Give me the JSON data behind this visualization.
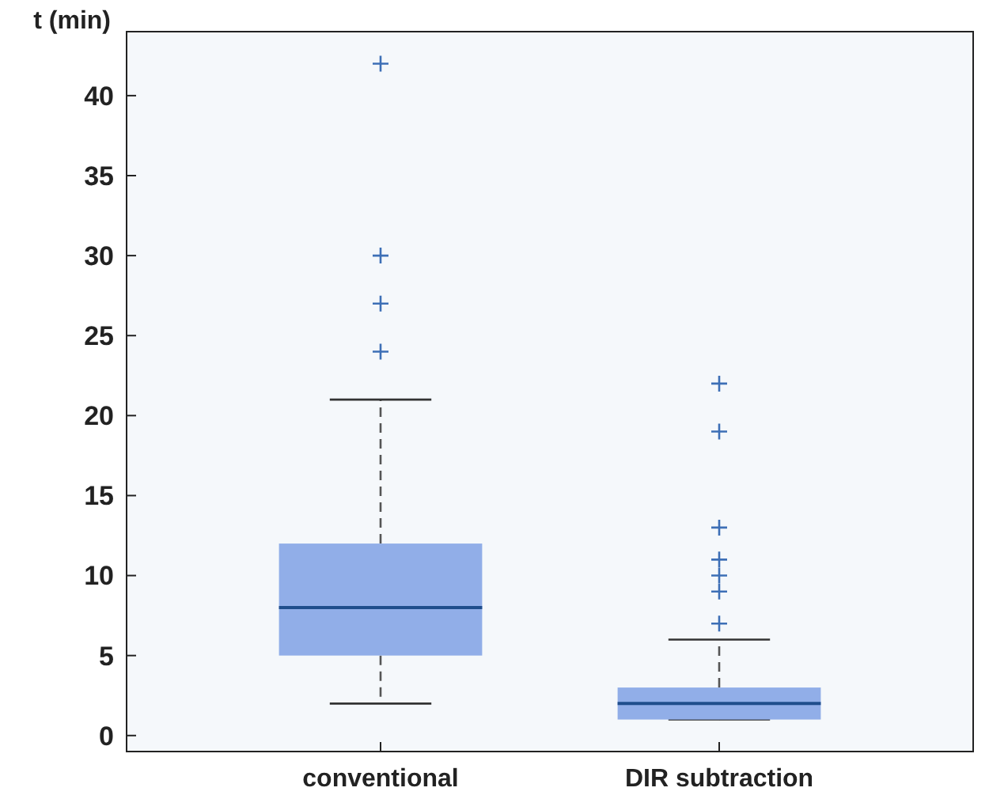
{
  "chart_data": {
    "type": "box",
    "ylabel": "t (min)",
    "categories": [
      "conventional",
      "DIR subtraction"
    ],
    "boxes": [
      {
        "low": 2,
        "q1": 5,
        "median": 8,
        "q3": 12,
        "high": 21,
        "outliers": [
          24,
          27,
          30,
          42
        ]
      },
      {
        "low": 1,
        "q1": 1,
        "median": 2,
        "q3": 3,
        "high": 6,
        "outliers": [
          7,
          9,
          10,
          11,
          13,
          19,
          22
        ]
      }
    ],
    "color": "#91aee8",
    "ylim": [
      -1,
      44
    ],
    "yticks": [
      0,
      5,
      10,
      15,
      20,
      25,
      30,
      35,
      40
    ],
    "grid": false,
    "marker": "cross",
    "line_style": "dashed"
  }
}
